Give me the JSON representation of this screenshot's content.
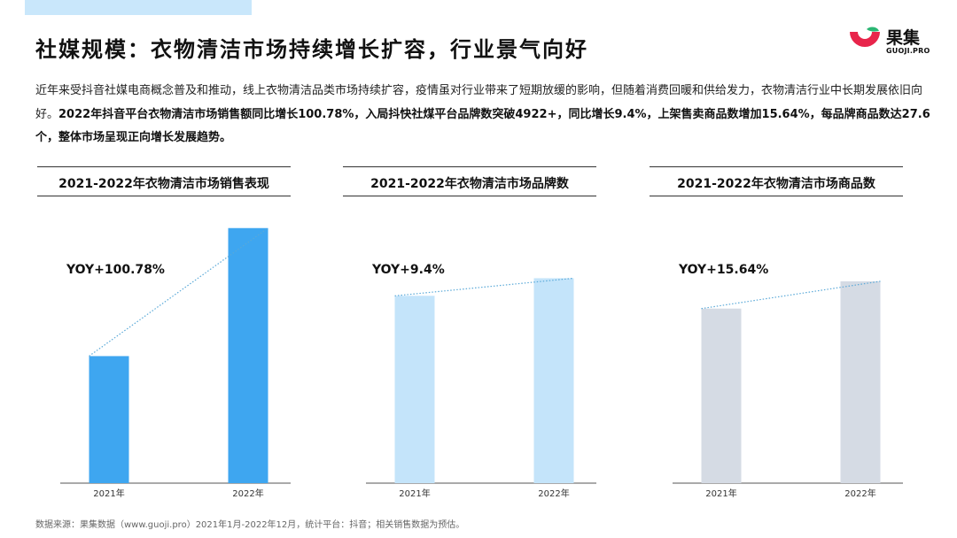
{
  "title": "社媒规模：衣物清洁市场持续增长扩容，行业景气向好",
  "logo": {
    "name": "果集",
    "domain": "GUOJI.PRO"
  },
  "paragraph": {
    "normal": "近年来受抖音社媒电商概念普及和推动，线上衣物清洁品类市场持续扩容，疫情虽对行业带来了短期放缓的影响，但随着消费回暖和供给发力，衣物清洁行业中长期发展依旧向好。",
    "bold": "2022年抖音平台衣物清洁市场销售额同比增长100.78%，入局抖快社煤平台品牌数突破4922+，同比增长9.4%，上架售卖商品数增加15.64%，每品牌商品数达27.6个，整体市场呈现正向增长发展趋势。"
  },
  "colors": {
    "bar_blue": "#3ea6f0",
    "bar_lightblue": "#c4e4fa",
    "bar_gray": "#d5dbe4",
    "baseline": "#555555"
  },
  "chart_data": [
    {
      "type": "bar",
      "title": "2021-2022年衣物清洁市场销售表现",
      "categories": [
        "2021年",
        "2022年"
      ],
      "values": [
        1,
        2.0078
      ],
      "annotation": "YOY+100.78%",
      "ylim": [
        0,
        2.02
      ],
      "grid": false,
      "color_key": "bar_blue",
      "trend_line": "dotted"
    },
    {
      "type": "bar",
      "title": "2021-2022年衣物清洁市场品牌数",
      "categories": [
        "2021年",
        "2022年"
      ],
      "values": [
        1,
        1.094
      ],
      "annotation": "YOY+9.4%",
      "ylim": [
        0,
        1.37
      ],
      "grid": false,
      "color_key": "bar_lightblue",
      "trend_line": "dotted"
    },
    {
      "type": "bar",
      "title": "2021-2022年衣物清洁市场商品数",
      "categories": [
        "2021年",
        "2022年"
      ],
      "values": [
        1,
        1.1564
      ],
      "annotation": "YOY+15.64%",
      "ylim": [
        0,
        1.47
      ],
      "grid": false,
      "color_key": "bar_gray",
      "trend_line": "dotted"
    }
  ],
  "footnote": "数据来源：果集数据（www.guoji.pro）2021年1月-2022年12月，统计平台：抖音；相关销售数据为预估。"
}
